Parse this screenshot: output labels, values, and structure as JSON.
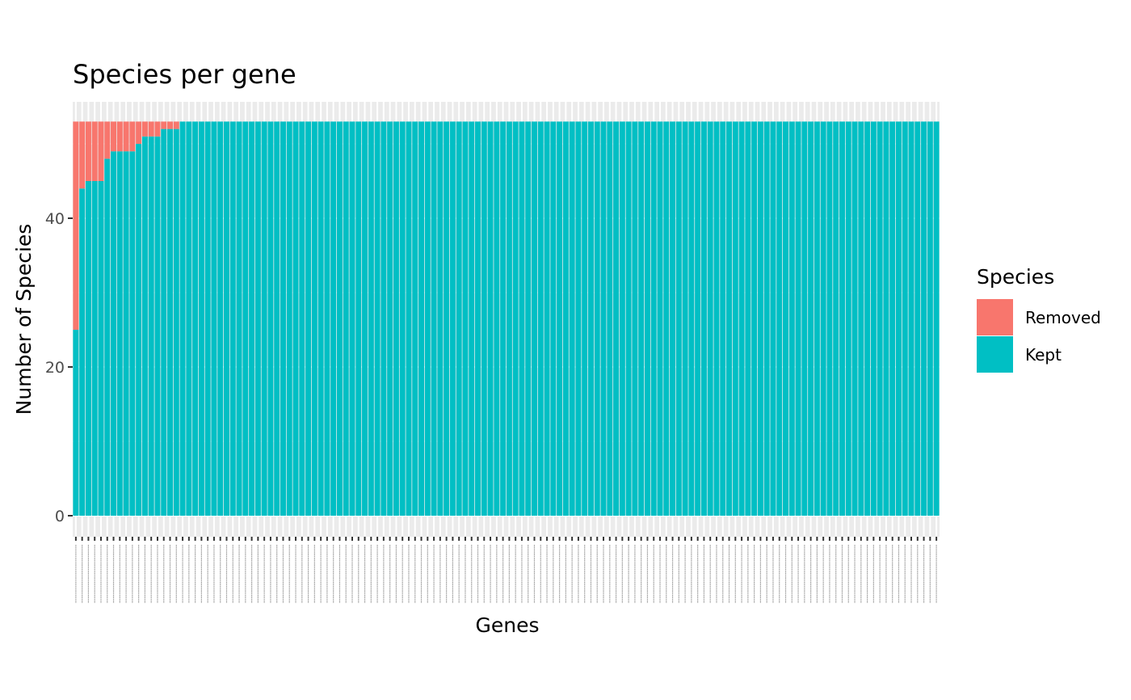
{
  "chart_data": {
    "type": "bar",
    "stacked": true,
    "title": "Species per gene",
    "xlabel": "Genes",
    "ylabel": "Number of Species",
    "ylim": [
      0,
      53
    ],
    "yticks": [
      0,
      20,
      40
    ],
    "total_species": 53,
    "n_genes": 138,
    "legend": {
      "title": "Species",
      "position": "right"
    },
    "series": [
      {
        "name": "Removed",
        "color": "#F8766D"
      },
      {
        "name": "Kept",
        "color": "#00BFC4"
      }
    ],
    "kept_values": [
      25,
      44,
      45,
      45,
      45,
      48,
      49,
      49,
      49,
      49,
      50,
      51,
      51,
      51,
      52,
      52,
      52,
      53,
      53,
      53,
      53,
      53,
      53,
      53,
      53,
      53,
      53,
      53,
      53,
      53,
      53,
      53,
      53,
      53,
      53,
      53,
      53,
      53,
      53,
      53,
      53,
      53,
      53,
      53,
      53,
      53,
      53,
      53,
      53,
      53,
      53,
      53,
      53,
      53,
      53,
      53,
      53,
      53,
      53,
      53,
      53,
      53,
      53,
      53,
      53,
      53,
      53,
      53,
      53,
      53,
      53,
      53,
      53,
      53,
      53,
      53,
      53,
      53,
      53,
      53,
      53,
      53,
      53,
      53,
      53,
      53,
      53,
      53,
      53,
      53,
      53,
      53,
      53,
      53,
      53,
      53,
      53,
      53,
      53,
      53,
      53,
      53,
      53,
      53,
      53,
      53,
      53,
      53,
      53,
      53,
      53,
      53,
      53,
      53,
      53,
      53,
      53,
      53,
      53,
      53,
      53,
      53,
      53,
      53,
      53,
      53,
      53,
      53,
      53,
      53,
      53,
      53,
      53,
      53,
      53,
      53,
      53,
      53
    ],
    "grid": true,
    "background": "#EBEBEB"
  }
}
